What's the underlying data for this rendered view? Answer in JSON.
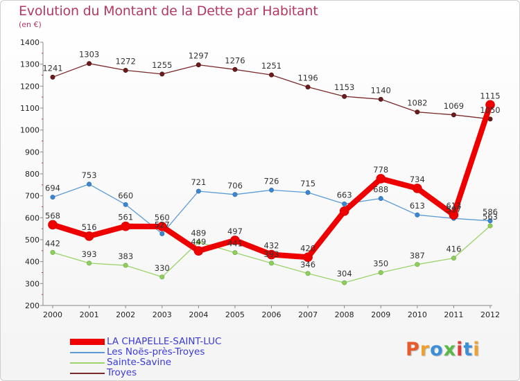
{
  "header": {
    "title": "Evolution du Montant de la Dette par Habitant",
    "subtitle": "(en €)"
  },
  "brand": {
    "text": "Proxiti",
    "colors": [
      "#e65c2a",
      "#f0a030",
      "#3a8fd8",
      "#58b848",
      "#e03a3a",
      "#3a8fd8",
      "#f0a030"
    ]
  },
  "chart_data": {
    "type": "line",
    "title": "Evolution du Montant de la Dette par Habitant",
    "subtitle": "(en €)",
    "x": [
      2000,
      2001,
      2002,
      2003,
      2004,
      2005,
      2006,
      2007,
      2008,
      2009,
      2010,
      2011,
      2012
    ],
    "ylim": [
      200,
      1400
    ],
    "yticks": [
      200,
      300,
      400,
      500,
      600,
      700,
      800,
      900,
      1000,
      1100,
      1200,
      1300,
      1400
    ],
    "grid": false,
    "legend": "bottom-left",
    "series": [
      {
        "name": "LA CHAPELLE-SAINT-LUC",
        "color": "#ee0000",
        "values": [
          568,
          516,
          561,
          560,
          449,
          497,
          432,
          420,
          630,
          778,
          734,
          613,
          1115
        ],
        "labels": [
          "568",
          "516",
          "561",
          "560",
          "449",
          "497",
          "432",
          "420",
          "",
          "778",
          "734",
          "613",
          "1115"
        ]
      },
      {
        "name": "Les Noës-près-Troyes",
        "color": "#5b9bd5",
        "values": [
          694,
          753,
          660,
          527,
          721,
          706,
          726,
          715,
          663,
          688,
          613,
          597,
          586
        ],
        "labels": [
          "694",
          "753",
          "660",
          "527",
          "721",
          "706",
          "726",
          "715",
          "663",
          "688",
          "613",
          "597",
          "586"
        ]
      },
      {
        "name": "Sainte-Savine",
        "color": "#9ad36a",
        "values": [
          442,
          393,
          383,
          330,
          489,
          441,
          393,
          346,
          304,
          350,
          387,
          416,
          563
        ],
        "labels": [
          "442",
          "393",
          "383",
          "330",
          "489",
          "441",
          "393",
          "346",
          "304",
          "350",
          "387",
          "416",
          "563"
        ]
      },
      {
        "name": "Troyes",
        "color": "#7a2a2a",
        "values": [
          1241,
          1303,
          1272,
          1255,
          1297,
          1276,
          1251,
          1196,
          1153,
          1140,
          1082,
          1069,
          1050
        ],
        "labels": [
          "1241",
          "1303",
          "1272",
          "1255",
          "1297",
          "1276",
          "1251",
          "1196",
          "1153",
          "1140",
          "1082",
          "1069",
          "1050"
        ]
      }
    ]
  }
}
